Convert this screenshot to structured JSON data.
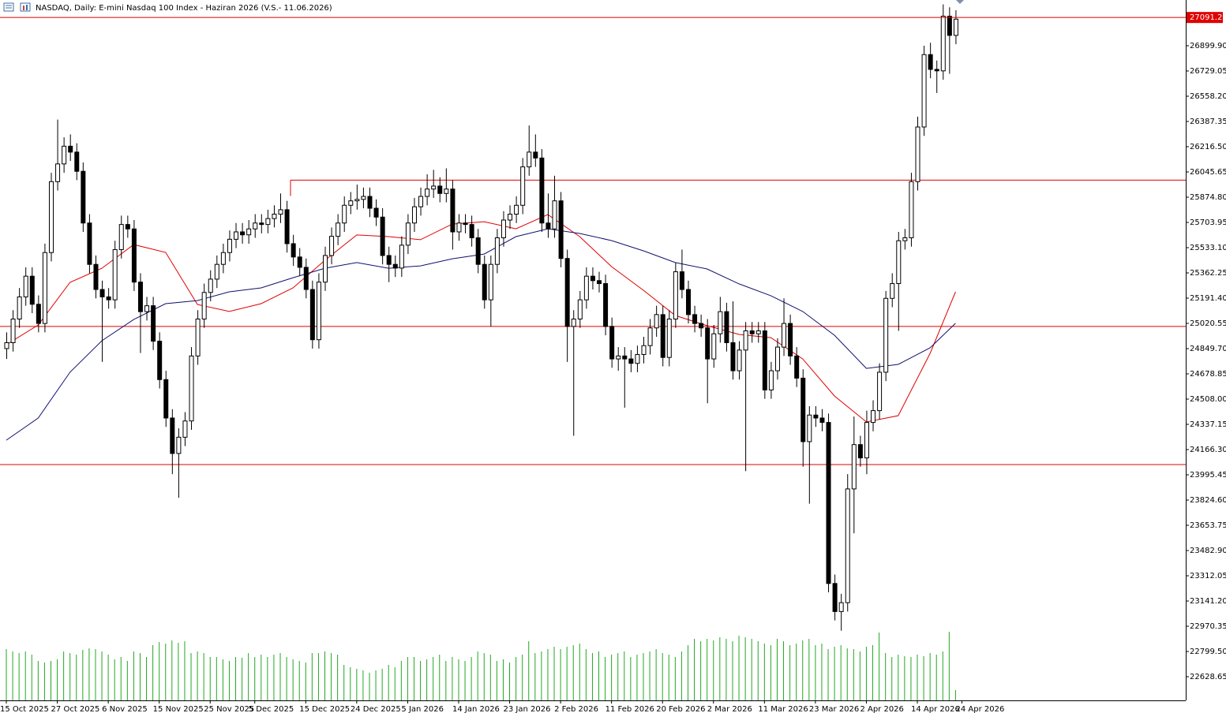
{
  "chart_data": {
    "type": "candlestick",
    "title": "NASDAQ, Daily:  E-mini Nasdaq 100 Index -  Haziran 2026 (V.S.- 11.06.2026)",
    "last_price": {
      "value": 27091.25,
      "label": "27091.25"
    },
    "ylim": [
      22468.6,
      27209.6
    ],
    "yticks": [
      {
        "value": 26899.9,
        "label": "26899.90"
      },
      26729.05,
      {
        "value": 26558.2,
        "label": "26558.20"
      },
      26387.35,
      {
        "value": 26216.5,
        "label": "26216.50"
      },
      26045.65,
      {
        "value": 25874.8,
        "label": "25874.80"
      },
      25703.95,
      {
        "value": 25533.1,
        "label": "25533.10"
      },
      25362.25,
      {
        "value": 25191.4,
        "label": "25191.40"
      },
      25020.55,
      {
        "value": 24849.7,
        "label": "24849.70"
      },
      24678.85,
      {
        "value": 24508,
        "label": "24508.00"
      },
      24337.15,
      {
        "value": 24166.3,
        "label": "24166.30"
      },
      23995.45,
      {
        "value": 23824.6,
        "label": "23824.60"
      },
      23653.75,
      {
        "value": 23482.9,
        "label": "23482.90"
      },
      23312.05,
      {
        "value": 23141.2,
        "label": "23141.20"
      },
      22970.35,
      {
        "value": 22799.5,
        "label": "22799.50"
      },
      22628.65
    ],
    "xticks": [
      {
        "value": 0,
        "label": "15 Oct 2025"
      },
      {
        "value": 8,
        "label": "27 Oct 2025"
      },
      {
        "value": 16,
        "label": "6 Nov 2025"
      },
      {
        "value": 24,
        "label": "15 Nov 2025"
      },
      {
        "value": 32,
        "label": "25 Nov 2025"
      },
      {
        "value": 39,
        "label": "5 Dec 2025"
      },
      {
        "value": 47,
        "label": "15 Dec 2025"
      },
      {
        "value": 55,
        "label": "24 Dec 2025"
      },
      {
        "value": 63,
        "label": "5 Jan 2026"
      },
      {
        "value": 71,
        "label": "14 Jan 2026"
      },
      {
        "value": 79,
        "label": "23 Jan 2026"
      },
      {
        "value": 87,
        "label": "2 Feb 2026"
      },
      {
        "value": 95,
        "label": "11 Feb 2026"
      },
      {
        "value": 103,
        "label": "20 Feb 2026"
      },
      {
        "value": 111,
        "label": "2 Mar 2026"
      },
      {
        "value": 119,
        "label": "11 Mar 2026"
      },
      {
        "value": 127,
        "label": "23 Mar 2026"
      },
      {
        "value": 135,
        "label": "2 Apr 2026"
      },
      {
        "value": 143,
        "label": "14 Apr 2026"
      },
      {
        "value": 150,
        "label": "24 Apr 2026"
      }
    ],
    "levels": [
      25990,
      25000,
      24065
    ],
    "level_color": "#e00000",
    "ohlc": [
      [
        24850,
        24960,
        24780,
        24890
      ],
      [
        24890,
        25110,
        24830,
        25050
      ],
      [
        25050,
        25260,
        24990,
        25200
      ],
      [
        25200,
        25400,
        25140,
        25340
      ],
      [
        25340,
        25400,
        25090,
        25150
      ],
      [
        25150,
        25210,
        24960,
        25020
      ],
      [
        25020,
        25560,
        24960,
        25500
      ],
      [
        25500,
        26040,
        25440,
        25980
      ],
      [
        25980,
        26400,
        25920,
        26100
      ],
      [
        26100,
        26280,
        26040,
        26220
      ],
      [
        26220,
        26300,
        26120,
        26180
      ],
      [
        26180,
        26240,
        25990,
        26050
      ],
      [
        26050,
        26110,
        25640,
        25700
      ],
      [
        25700,
        25760,
        25360,
        25420
      ],
      [
        25420,
        25480,
        25190,
        25250
      ],
      [
        25250,
        25310,
        24760,
        25200
      ],
      [
        25200,
        25260,
        25120,
        25180
      ],
      [
        25180,
        25580,
        25120,
        25520
      ],
      [
        25520,
        25750,
        25460,
        25690
      ],
      [
        25690,
        25750,
        25600,
        25660
      ],
      [
        25660,
        25720,
        25240,
        25300
      ],
      [
        25300,
        25360,
        24820,
        25100
      ],
      [
        25100,
        25200,
        25040,
        25140
      ],
      [
        25140,
        25200,
        24840,
        24900
      ],
      [
        24900,
        24960,
        24580,
        24640
      ],
      [
        24640,
        24700,
        24320,
        24380
      ],
      [
        24380,
        24440,
        24000,
        24140
      ],
      [
        24140,
        24310,
        23840,
        24250
      ],
      [
        24250,
        24420,
        24190,
        24360
      ],
      [
        24360,
        24860,
        24300,
        24800
      ],
      [
        24800,
        25110,
        24740,
        25050
      ],
      [
        25050,
        25290,
        24990,
        25230
      ],
      [
        25230,
        25380,
        25170,
        25320
      ],
      [
        25320,
        25480,
        25260,
        25420
      ],
      [
        25420,
        25560,
        25360,
        25500
      ],
      [
        25500,
        25650,
        25440,
        25590
      ],
      [
        25590,
        25700,
        25530,
        25640
      ],
      [
        25640,
        25700,
        25560,
        25620
      ],
      [
        25620,
        25720,
        25560,
        25660
      ],
      [
        25660,
        25760,
        25600,
        25700
      ],
      [
        25700,
        25760,
        25630,
        25690
      ],
      [
        25690,
        25790,
        25630,
        25730
      ],
      [
        25730,
        25820,
        25670,
        25760
      ],
      [
        25760,
        25900,
        25700,
        25790
      ],
      [
        25790,
        25850,
        25500,
        25560
      ],
      [
        25560,
        25620,
        25410,
        25470
      ],
      [
        25470,
        25530,
        25340,
        25400
      ],
      [
        25400,
        25460,
        25190,
        25250
      ],
      [
        25250,
        25310,
        24850,
        24910
      ],
      [
        24910,
        25360,
        24850,
        25300
      ],
      [
        25300,
        25540,
        25240,
        25480
      ],
      [
        25480,
        25670,
        25420,
        25610
      ],
      [
        25610,
        25760,
        25550,
        25700
      ],
      [
        25700,
        25880,
        25640,
        25820
      ],
      [
        25820,
        25910,
        25760,
        25850
      ],
      [
        25850,
        25960,
        25790,
        25860
      ],
      [
        25860,
        25940,
        25800,
        25880
      ],
      [
        25880,
        25940,
        25740,
        25800
      ],
      [
        25800,
        25860,
        25680,
        25740
      ],
      [
        25740,
        25800,
        25420,
        25480
      ],
      [
        25480,
        25540,
        25300,
        25420
      ],
      [
        25420,
        25480,
        25335,
        25395
      ],
      [
        25395,
        25610,
        25335,
        25550
      ],
      [
        25550,
        25760,
        25490,
        25700
      ],
      [
        25700,
        25870,
        25640,
        25810
      ],
      [
        25810,
        25940,
        25750,
        25880
      ],
      [
        25880,
        26030,
        25820,
        25930
      ],
      [
        25930,
        26060,
        25870,
        25950
      ],
      [
        25950,
        26010,
        25840,
        25900
      ],
      [
        25900,
        26070,
        25840,
        25930
      ],
      [
        25930,
        25990,
        25520,
        25640
      ],
      [
        25640,
        25760,
        25580,
        25700
      ],
      [
        25700,
        25760,
        25630,
        25690
      ],
      [
        25690,
        25750,
        25540,
        25600
      ],
      [
        25600,
        25660,
        25360,
        25420
      ],
      [
        25420,
        25480,
        25120,
        25180
      ],
      [
        25180,
        25480,
        25000,
        25420
      ],
      [
        25420,
        25660,
        25360,
        25600
      ],
      [
        25600,
        25780,
        25540,
        25720
      ],
      [
        25720,
        25820,
        25660,
        25760
      ],
      [
        25760,
        25880,
        25700,
        25820
      ],
      [
        25820,
        26140,
        25760,
        26080
      ],
      [
        26080,
        26360,
        26020,
        26180
      ],
      [
        26180,
        26300,
        26080,
        26140
      ],
      [
        26140,
        26200,
        25640,
        25700
      ],
      [
        25700,
        25900,
        25600,
        25660
      ],
      [
        25660,
        26020,
        25600,
        25850
      ],
      [
        25850,
        25910,
        25400,
        25460
      ],
      [
        25460,
        25520,
        24760,
        25000
      ],
      [
        25000,
        25110,
        24260,
        25050
      ],
      [
        25050,
        25240,
        24990,
        25180
      ],
      [
        25180,
        25400,
        25120,
        25340
      ],
      [
        25340,
        25400,
        25250,
        25310
      ],
      [
        25310,
        25370,
        25230,
        25290
      ],
      [
        25290,
        25350,
        24940,
        25000
      ],
      [
        25000,
        25060,
        24720,
        24780
      ],
      [
        24780,
        24860,
        24700,
        24800
      ],
      [
        24800,
        24860,
        24450,
        24780
      ],
      [
        24780,
        24840,
        24690,
        24750
      ],
      [
        24750,
        24870,
        24690,
        24810
      ],
      [
        24810,
        24930,
        24750,
        24870
      ],
      [
        24870,
        25050,
        24810,
        24990
      ],
      [
        24990,
        25140,
        24930,
        25080
      ],
      [
        25080,
        25140,
        24730,
        24790
      ],
      [
        24790,
        25110,
        24730,
        25050
      ],
      [
        25050,
        25430,
        24990,
        25370
      ],
      [
        25370,
        25520,
        25190,
        25250
      ],
      [
        25250,
        25310,
        25020,
        25080
      ],
      [
        25080,
        25140,
        24960,
        25020
      ],
      [
        25020,
        25080,
        24930,
        24990
      ],
      [
        24990,
        25050,
        24480,
        24780
      ],
      [
        24780,
        25010,
        24720,
        24950
      ],
      [
        24950,
        25200,
        24890,
        25100
      ],
      [
        25100,
        25160,
        24830,
        24890
      ],
      [
        24890,
        25170,
        24640,
        24700
      ],
      [
        24700,
        24900,
        24640,
        24840
      ],
      [
        24840,
        25030,
        24020,
        24970
      ],
      [
        24970,
        25030,
        24890,
        24950
      ],
      [
        24950,
        25030,
        24890,
        24970
      ],
      [
        24970,
        25030,
        24510,
        24570
      ],
      [
        24570,
        24760,
        24510,
        24700
      ],
      [
        24700,
        24920,
        24640,
        24860
      ],
      [
        24860,
        25190,
        24800,
        25020
      ],
      [
        25020,
        25080,
        24740,
        24800
      ],
      [
        24800,
        24860,
        24590,
        24650
      ],
      [
        24650,
        24710,
        24050,
        24220
      ],
      [
        24220,
        24460,
        23800,
        24400
      ],
      [
        24400,
        24460,
        24320,
        24380
      ],
      [
        24380,
        24440,
        24290,
        24350
      ],
      [
        24350,
        24410,
        23200,
        23260
      ],
      [
        23260,
        23320,
        23010,
        23070
      ],
      [
        23070,
        23190,
        22940,
        23130
      ],
      [
        23130,
        24000,
        23070,
        23900
      ],
      [
        23900,
        24390,
        23600,
        24200
      ],
      [
        24200,
        24260,
        24050,
        24110
      ],
      [
        24110,
        24430,
        24000,
        24350
      ],
      [
        24350,
        24500,
        24290,
        24430
      ],
      [
        24430,
        24750,
        24370,
        24690
      ],
      [
        24690,
        25240,
        24630,
        25190
      ],
      [
        25190,
        25360,
        25130,
        25290
      ],
      [
        25290,
        25640,
        24970,
        25580
      ],
      [
        25580,
        25660,
        25520,
        25600
      ],
      [
        25600,
        26040,
        25540,
        25980
      ],
      [
        25980,
        26420,
        25920,
        26350
      ],
      [
        26350,
        26900,
        26290,
        26840
      ],
      [
        26840,
        26920,
        26680,
        26740
      ],
      [
        26740,
        26800,
        26580,
        26730
      ],
      [
        26730,
        27180,
        26670,
        27100
      ],
      [
        27100,
        27160,
        26710,
        26970
      ],
      [
        26970,
        27140,
        26910,
        27080
      ]
    ],
    "volume": [
      65,
      62,
      60,
      62,
      58,
      50,
      48,
      50,
      52,
      62,
      60,
      58,
      64,
      66,
      65,
      62,
      58,
      52,
      55,
      50,
      62,
      60,
      55,
      70,
      74,
      72,
      76,
      73,
      75,
      60,
      62,
      60,
      55,
      55,
      52,
      50,
      55,
      54,
      60,
      55,
      58,
      55,
      58,
      60,
      55,
      52,
      50,
      48,
      60,
      60,
      62,
      60,
      58,
      45,
      42,
      40,
      38,
      35,
      38,
      40,
      45,
      42,
      50,
      55,
      55,
      50,
      52,
      55,
      58,
      50,
      55,
      52,
      50,
      55,
      62,
      60,
      58,
      50,
      52,
      48,
      55,
      58,
      75,
      60,
      62,
      65,
      68,
      65,
      68,
      70,
      72,
      65,
      60,
      62,
      55,
      58,
      60,
      62,
      55,
      58,
      60,
      62,
      65,
      60,
      58,
      55,
      62,
      70,
      78,
      75,
      78,
      76,
      80,
      78,
      75,
      82,
      80,
      78,
      75,
      72,
      70,
      78,
      75,
      70,
      72,
      76,
      78,
      70,
      72,
      65,
      68,
      70,
      66,
      65,
      62,
      68,
      70,
      86,
      60,
      55,
      58,
      56,
      55,
      58,
      56,
      60,
      58,
      62,
      87,
      13
    ],
    "volume_color": "#22a822",
    "ma_x": [
      0,
      5,
      10,
      15,
      20,
      25,
      30,
      35,
      40,
      45,
      50,
      55,
      60,
      65,
      70,
      75,
      80,
      85,
      90,
      95,
      100,
      105,
      110,
      115,
      120,
      125,
      130,
      135,
      140,
      145,
      149
    ],
    "ma_lines": [
      {
        "color": "#e00000",
        "values": [
          24876,
          25010,
          25298,
          25394,
          25554,
          25501,
          25149,
          25101,
          25154,
          25261,
          25447,
          25619,
          25608,
          25587,
          25693,
          25709,
          25661,
          25757,
          25608,
          25405,
          25245,
          25074,
          25005,
          24946,
          24924,
          24780,
          24529,
          24353,
          24396,
          24818,
          25234
        ]
      },
      {
        "color": "#10106e",
        "values": [
          24230,
          24380,
          24690,
          24903,
          25047,
          25154,
          25175,
          25234,
          25261,
          25330,
          25394,
          25432,
          25394,
          25410,
          25458,
          25490,
          25608,
          25661,
          25629,
          25581,
          25512,
          25432,
          25389,
          25288,
          25208,
          25101,
          24940,
          24716,
          24743,
          24855,
          25021
        ]
      }
    ]
  }
}
